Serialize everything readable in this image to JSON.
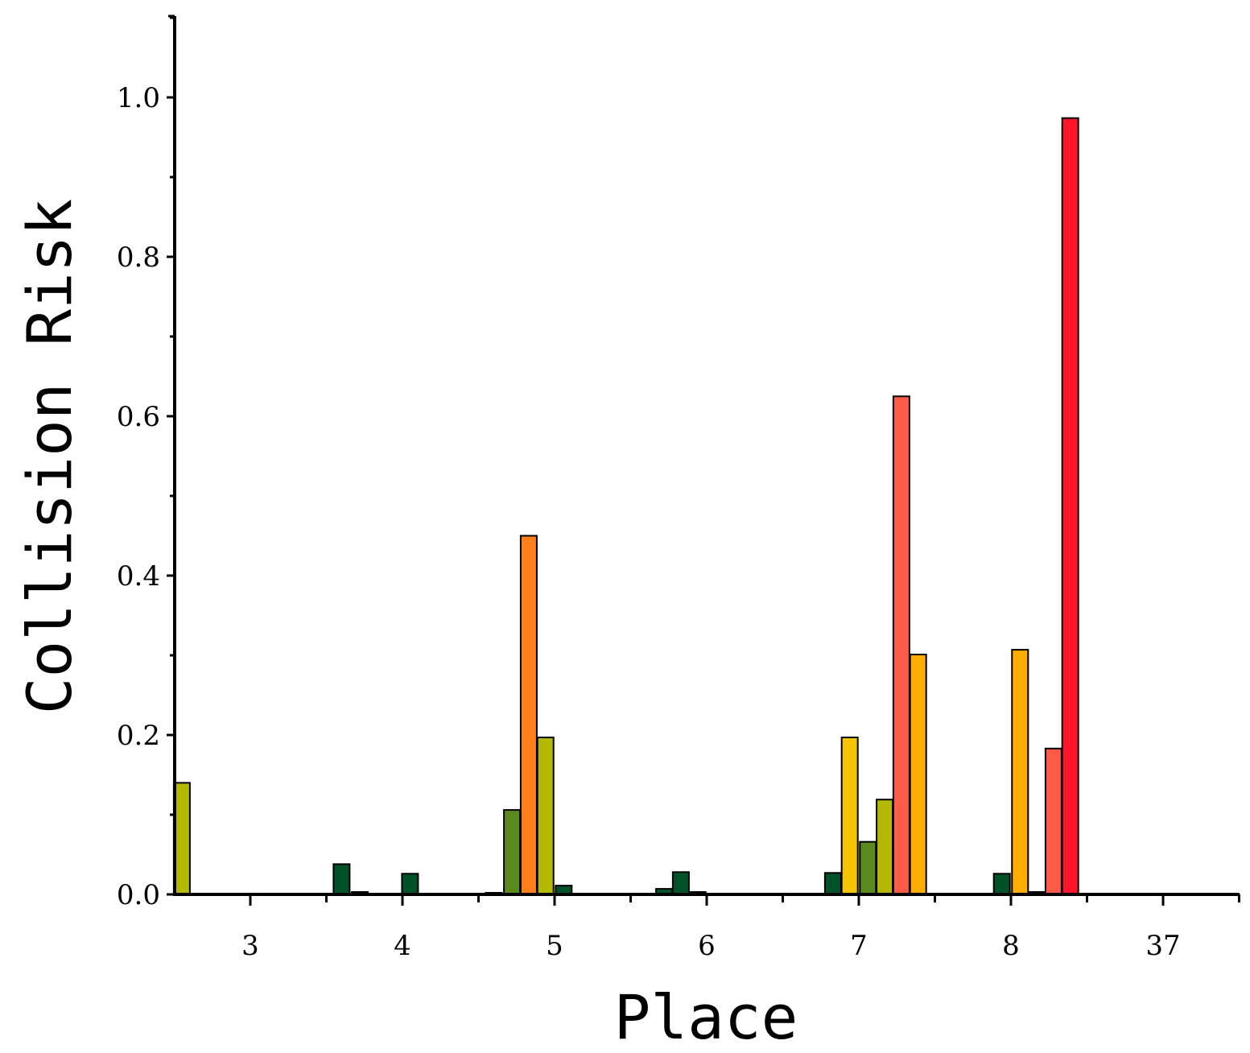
{
  "chart_data": {
    "type": "bar",
    "xlabel": "Place",
    "ylabel": "Collision Risk",
    "ylim": [
      0,
      1.1
    ],
    "yticks": [
      "0.0",
      "0.2",
      "0.4",
      "0.6",
      "0.8",
      "1.0"
    ],
    "x_tick_labels": [
      "3",
      "4",
      "5",
      "6",
      "7",
      "8",
      "37"
    ],
    "grid": false,
    "legend": "none",
    "bars": [
      {
        "x": 2.55,
        "value": 0.14,
        "color": "#b5b800"
      },
      {
        "x": 3.6,
        "value": 0.038,
        "color": "#005229"
      },
      {
        "x": 3.72,
        "value": 0.003,
        "color": "#005229"
      },
      {
        "x": 4.05,
        "value": 0.026,
        "color": "#005229"
      },
      {
        "x": 4.6,
        "value": 0.002,
        "color": "#005229"
      },
      {
        "x": 4.72,
        "value": 0.106,
        "color": "#5a8a1e"
      },
      {
        "x": 4.83,
        "value": 0.45,
        "color": "#ff7f1c"
      },
      {
        "x": 4.94,
        "value": 0.197,
        "color": "#b5b800"
      },
      {
        "x": 5.06,
        "value": 0.011,
        "color": "#005229"
      },
      {
        "x": 5.72,
        "value": 0.007,
        "color": "#005229"
      },
      {
        "x": 5.83,
        "value": 0.028,
        "color": "#005229"
      },
      {
        "x": 5.94,
        "value": 0.003,
        "color": "#005229"
      },
      {
        "x": 6.83,
        "value": 0.027,
        "color": "#005229"
      },
      {
        "x": 6.94,
        "value": 0.197,
        "color": "#f5c400"
      },
      {
        "x": 7.06,
        "value": 0.066,
        "color": "#5a8a1e"
      },
      {
        "x": 7.17,
        "value": 0.119,
        "color": "#b5b800"
      },
      {
        "x": 7.28,
        "value": 0.625,
        "color": "#ff5a47"
      },
      {
        "x": 7.39,
        "value": 0.301,
        "color": "#ffad00"
      },
      {
        "x": 7.94,
        "value": 0.026,
        "color": "#005229"
      },
      {
        "x": 8.06,
        "value": 0.307,
        "color": "#ffad00"
      },
      {
        "x": 8.17,
        "value": 0.003,
        "color": "#005229"
      },
      {
        "x": 8.28,
        "value": 0.183,
        "color": "#ff5a47"
      },
      {
        "x": 8.39,
        "value": 0.974,
        "color": "#ff1428"
      }
    ]
  }
}
